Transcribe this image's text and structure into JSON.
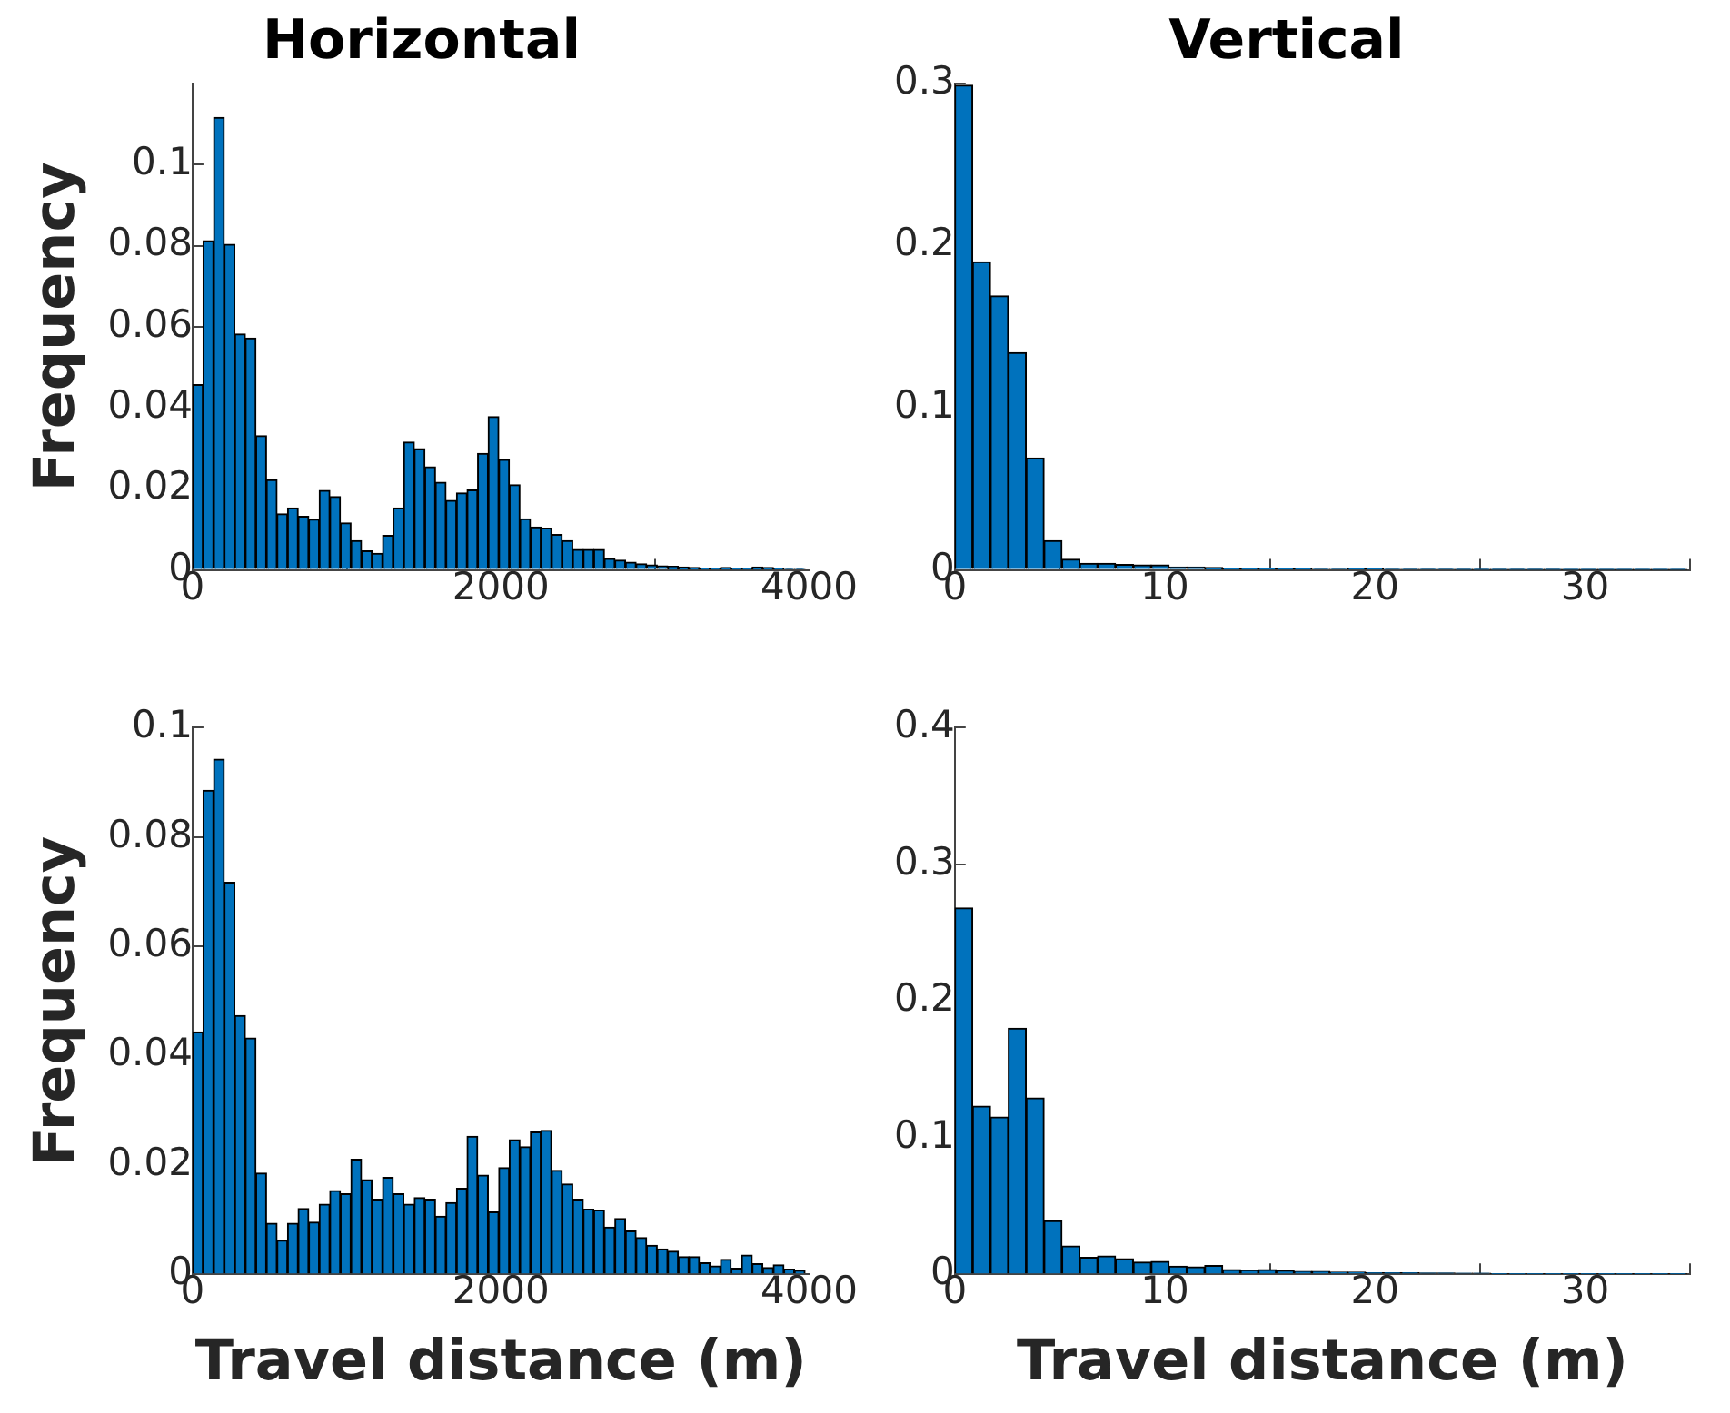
{
  "chart_data": [
    {
      "type": "histogram",
      "title": "Horizontal",
      "ylabel": "Frequency",
      "color": "#0072bd",
      "bins": [
        0,
        68.5,
        137,
        205.5,
        274,
        342.5,
        411,
        479.5,
        548,
        616.5,
        685,
        753.5,
        822,
        890.5,
        959,
        1027.5,
        1096,
        1164.5,
        1233,
        1301.5,
        1370,
        1438.5,
        1507,
        1575.5,
        1644,
        1712.5,
        1781,
        1849.5,
        1918,
        1986.5,
        2055,
        2123.5,
        2192,
        2260.5,
        2329,
        2397.5,
        2466,
        2534.5,
        2603,
        2671.5,
        2740,
        2808.5,
        2877,
        2945.5,
        3014,
        3082.5,
        3151,
        3219.5,
        3288,
        3356.5,
        3425,
        3493.5,
        3562,
        3630.5,
        3699,
        3767.5,
        3836,
        3904.5,
        3973
      ],
      "values": [
        0.0457,
        0.0812,
        0.1116,
        0.0803,
        0.0582,
        0.0572,
        0.0331,
        0.0222,
        0.0138,
        0.0153,
        0.0132,
        0.0125,
        0.0196,
        0.0181,
        0.0116,
        0.0072,
        0.0047,
        0.0041,
        0.0085,
        0.0153,
        0.0315,
        0.0299,
        0.0254,
        0.0216,
        0.0171,
        0.019,
        0.0197,
        0.0287,
        0.0378,
        0.0272,
        0.021,
        0.0126,
        0.0106,
        0.0103,
        0.0087,
        0.0072,
        0.005,
        0.005,
        0.005,
        0.0028,
        0.0024,
        0.0019,
        0.0015,
        0.0012,
        0.001,
        0.0009,
        0.0007,
        0.0006,
        0.0004,
        0.0004,
        0.0006,
        0.0004,
        0.0004,
        0.0007,
        0.0006,
        0.0004,
        0.0003,
        0.0003
      ],
      "xlim": [
        0,
        4000
      ],
      "xticks": [
        0,
        2000,
        4000
      ],
      "ylim": [
        0,
        0.12
      ],
      "yticks": [
        0,
        0.02,
        0.04,
        0.06,
        0.08,
        0.1
      ],
      "grid": false,
      "legend": false
    },
    {
      "type": "histogram",
      "title": "Vertical",
      "color": "#0072bd",
      "bins": [
        0,
        0.85,
        1.7,
        2.55,
        3.4,
        4.25,
        5.1,
        5.95,
        6.8,
        7.65,
        8.5,
        9.35,
        10.2,
        11.05,
        11.9,
        12.75,
        13.6,
        14.45,
        15.3,
        16.15,
        17,
        17.85,
        18.7,
        19.55,
        20.4,
        21.25,
        22.1,
        22.95,
        23.8,
        24.65,
        25.5,
        26.35,
        27.2,
        28.05,
        28.9,
        29.75,
        30.6,
        31.45,
        32.3,
        33.15,
        34,
        34.85
      ],
      "values": [
        0.299,
        0.19,
        0.169,
        0.134,
        0.069,
        0.018,
        0.0066,
        0.004,
        0.004,
        0.0033,
        0.003,
        0.003,
        0.0018,
        0.0018,
        0.0015,
        0.001,
        0.001,
        0.001,
        0.0008,
        0.0008,
        0.0007,
        0.0007,
        0.0006,
        0.0006,
        0.0005,
        0.0005,
        0.0005,
        0.0005,
        0.0004,
        0.0004,
        0.0004,
        0.0004,
        0.0004,
        0.0004,
        0.0003,
        0.0003,
        0.0003,
        0.0003,
        0.0003,
        0.0003,
        0.0003
      ],
      "xlim": [
        0,
        35
      ],
      "xticks": [
        0,
        10,
        20,
        30
      ],
      "ylim": [
        0,
        0.3
      ],
      "yticks": [
        0,
        0.1,
        0.2,
        0.3
      ],
      "grid": false,
      "legend": false
    },
    {
      "type": "histogram",
      "xlabel": "Travel distance (m)",
      "ylabel": "Frequency",
      "color": "#0072bd",
      "bins": [
        0,
        68.5,
        137,
        205.5,
        274,
        342.5,
        411,
        479.5,
        548,
        616.5,
        685,
        753.5,
        822,
        890.5,
        959,
        1027.5,
        1096,
        1164.5,
        1233,
        1301.5,
        1370,
        1438.5,
        1507,
        1575.5,
        1644,
        1712.5,
        1781,
        1849.5,
        1918,
        1986.5,
        2055,
        2123.5,
        2192,
        2260.5,
        2329,
        2397.5,
        2466,
        2534.5,
        2603,
        2671.5,
        2740,
        2808.5,
        2877,
        2945.5,
        3014,
        3082.5,
        3151,
        3219.5,
        3288,
        3356.5,
        3425,
        3493.5,
        3562,
        3630.5,
        3699,
        3767.5,
        3836,
        3904.5,
        3973
      ],
      "values": [
        0.0443,
        0.0885,
        0.0942,
        0.0717,
        0.0473,
        0.0432,
        0.0185,
        0.0093,
        0.0062,
        0.0093,
        0.012,
        0.0095,
        0.0128,
        0.0153,
        0.0147,
        0.021,
        0.0173,
        0.0137,
        0.0177,
        0.0147,
        0.0128,
        0.014,
        0.0137,
        0.0106,
        0.0131,
        0.0157,
        0.0252,
        0.0181,
        0.0114,
        0.0195,
        0.0246,
        0.0233,
        0.026,
        0.0263,
        0.019,
        0.0165,
        0.0137,
        0.0119,
        0.0117,
        0.0086,
        0.0102,
        0.0079,
        0.0067,
        0.0053,
        0.0046,
        0.0042,
        0.0032,
        0.0032,
        0.0021,
        0.0015,
        0.0027,
        0.0011,
        0.0035,
        0.0019,
        0.0012,
        0.0017,
        0.0009,
        0.0006
      ],
      "xlim": [
        0,
        4000
      ],
      "xticks": [
        0,
        2000,
        4000
      ],
      "ylim": [
        0,
        0.1
      ],
      "yticks": [
        0,
        0.02,
        0.04,
        0.06,
        0.08,
        0.1
      ],
      "grid": false,
      "legend": false
    },
    {
      "type": "histogram",
      "xlabel": "Travel distance (m)",
      "color": "#0072bd",
      "bins": [
        0,
        0.85,
        1.7,
        2.55,
        3.4,
        4.25,
        5.1,
        5.95,
        6.8,
        7.65,
        8.5,
        9.35,
        10.2,
        11.05,
        11.9,
        12.75,
        13.6,
        14.45,
        15.3,
        16.15,
        17,
        17.85,
        18.7,
        19.55,
        20.4,
        21.25,
        22.1,
        22.95,
        23.8,
        24.65,
        25.5,
        26.35,
        27.2,
        28.05,
        28.9,
        29.75,
        30.6,
        31.45,
        32.3,
        33.15,
        34,
        34.85
      ],
      "values": [
        0.268,
        0.123,
        0.115,
        0.18,
        0.129,
        0.039,
        0.0207,
        0.0123,
        0.0133,
        0.0113,
        0.0089,
        0.0094,
        0.0059,
        0.0054,
        0.0064,
        0.0034,
        0.003,
        0.0034,
        0.0025,
        0.002,
        0.002,
        0.0015,
        0.0015,
        0.001,
        0.001,
        0.001,
        0.0008,
        0.0008,
        0.0007,
        0.0007,
        0.0006,
        0.0006,
        0.0005,
        0.0005,
        0.0005,
        0.0004,
        0.0004,
        0.0004,
        0.0004,
        0.0004,
        0.0004
      ],
      "xlim": [
        0,
        35
      ],
      "xticks": [
        0,
        10,
        20,
        30
      ],
      "ylim": [
        0,
        0.4
      ],
      "yticks": [
        0,
        0.1,
        0.2,
        0.3,
        0.4
      ],
      "grid": false,
      "legend": false
    }
  ]
}
